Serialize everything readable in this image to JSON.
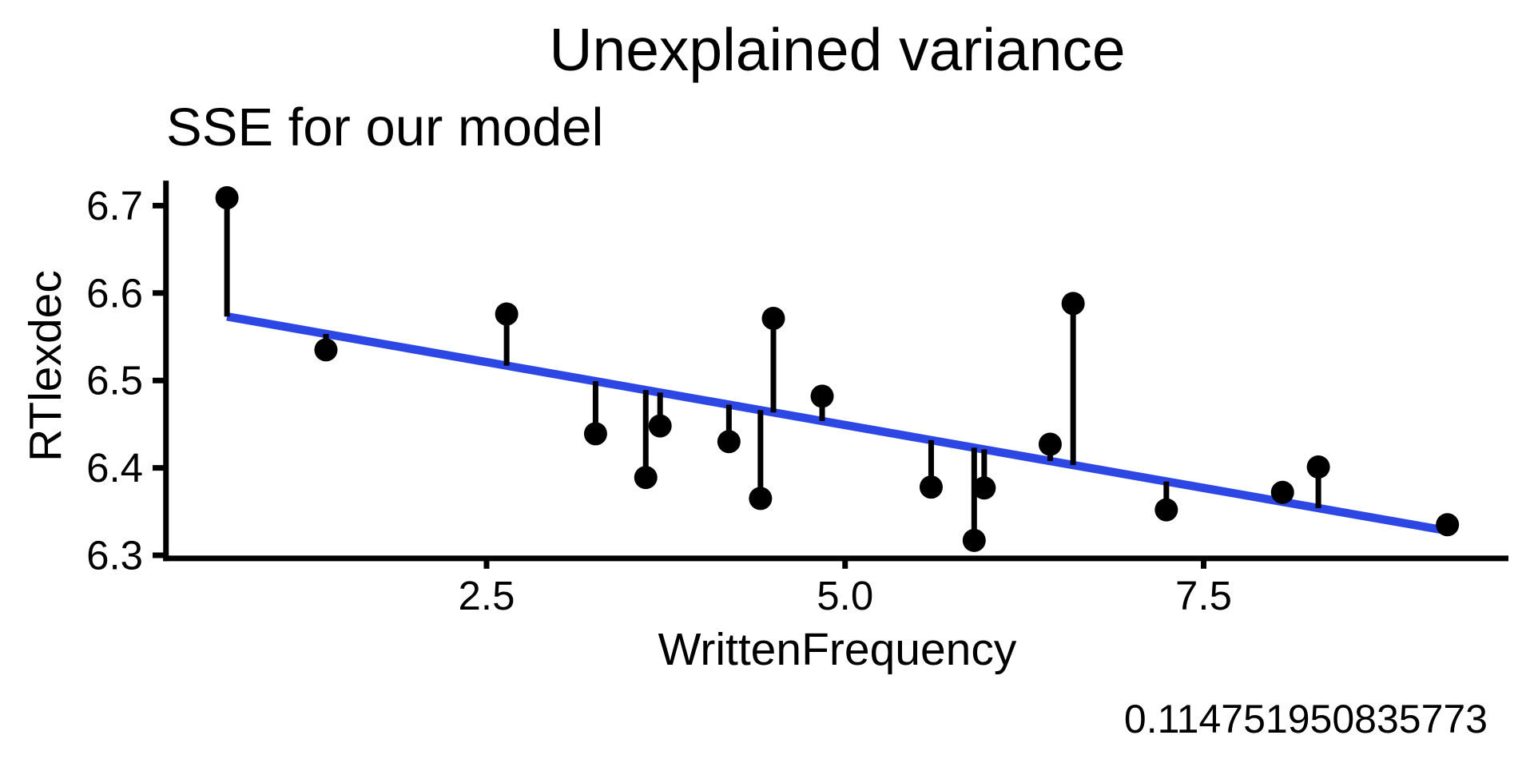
{
  "chart_data": {
    "type": "scatter",
    "title": "Unexplained variance",
    "subtitle": "SSE for our model",
    "xlabel": "WrittenFrequency",
    "ylabel": "RTlexdec",
    "caption": "0.114751950835773",
    "grid": false,
    "legend": false,
    "xlim": [
      0.2645,
      9.6255
    ],
    "ylim": [
      6.2965,
      6.7286
    ],
    "x_ticks": {
      "values": [
        2.5,
        5.0,
        7.5
      ],
      "labels": [
        "2.5",
        "5.0",
        "7.5"
      ]
    },
    "y_ticks": {
      "values": [
        6.3,
        6.4,
        6.5,
        6.6,
        6.7
      ],
      "labels": [
        "6.3",
        "6.4",
        "6.5",
        "6.6",
        "6.7"
      ]
    },
    "points": [
      {
        "x": 0.69,
        "y": 6.709
      },
      {
        "x": 1.38,
        "y": 6.535
      },
      {
        "x": 2.64,
        "y": 6.576
      },
      {
        "x": 3.26,
        "y": 6.439
      },
      {
        "x": 3.61,
        "y": 6.389
      },
      {
        "x": 3.71,
        "y": 6.448
      },
      {
        "x": 4.19,
        "y": 6.43
      },
      {
        "x": 4.41,
        "y": 6.365
      },
      {
        "x": 4.5,
        "y": 6.571
      },
      {
        "x": 4.84,
        "y": 6.482
      },
      {
        "x": 5.6,
        "y": 6.378
      },
      {
        "x": 5.9,
        "y": 6.317
      },
      {
        "x": 5.97,
        "y": 6.377
      },
      {
        "x": 6.43,
        "y": 6.427
      },
      {
        "x": 6.59,
        "y": 6.588
      },
      {
        "x": 7.24,
        "y": 6.352
      },
      {
        "x": 8.05,
        "y": 6.372
      },
      {
        "x": 8.3,
        "y": 6.401
      },
      {
        "x": 9.2,
        "y": 6.335
      }
    ],
    "regression_line": {
      "intercept": 6.593,
      "slope": -0.0288,
      "x_start": 0.69,
      "x_end": 9.2
    },
    "colors": {
      "regression_blue": "#2D47E5",
      "points_black": "#000000",
      "residual_black": "#000000",
      "axis_black": "#000000",
      "text_black": "#000000"
    }
  }
}
